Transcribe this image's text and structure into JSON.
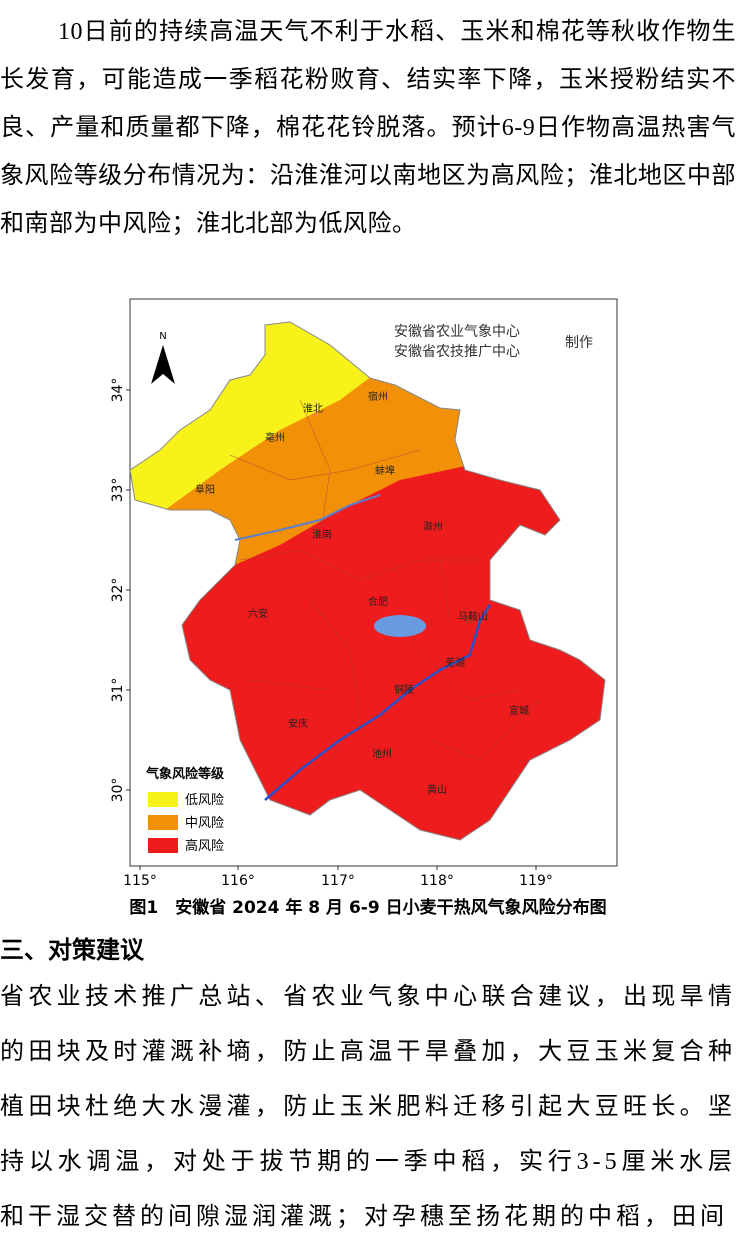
{
  "paragraphs": [
    "10日前的持续高温天气不利于水稻、玉米和棉花等秋收作物生长发育，可能造成一季稻花粉败育、结实率下降，玉米授粉结实不良、产量和质量都下降，棉花花铃脱落。预计6-9日作物高温热害气象风险等级分布情况为：沿淮淮河以南地区为高风险；淮北地区中部和南部为中风险；淮北北部为低风险。"
  ],
  "figure": {
    "caption": "图1　安徽省 2024 年 8 月 6-9 日小麦干热风气象风险分布图",
    "map": {
      "credit_lines": [
        "安徽省农业气象中心",
        "安徽省农技推广中心"
      ],
      "credit_suffix": "制作",
      "north": "N",
      "lat_labels": [
        "34°",
        "33°",
        "32°",
        "31°",
        "30°"
      ],
      "lon_labels": [
        "115°",
        "116°",
        "117°",
        "118°",
        "119°"
      ],
      "cities": [
        "宿州",
        "淮北",
        "亳州",
        "蚌埠",
        "阜阳",
        "淮南",
        "滁州",
        "合肥",
        "六安",
        "马鞍山",
        "芜湖",
        "铜陵",
        "宣城",
        "安庆",
        "池州",
        "黄山"
      ],
      "legend": {
        "title": "气象风险等级",
        "items": [
          "低风险",
          "中风险",
          "高风险"
        ]
      }
    }
  },
  "section": {
    "heading": "三、对策建议",
    "paragraphs": [
      "省农业技术推广总站、省农业气象中心联合建议，出现旱情的田块及时灌溉补墒，防止高温干旱叠加，大豆玉米复合种植田块杜绝大水漫灌，防止玉米肥料迁移引起大豆旺长。坚持以水调温，对处于拔节期的一季中稻，实行3-5厘米水层和干湿交替的间隙湿润灌溉；对孕穗至扬花期的中稻，田间"
    ]
  }
}
